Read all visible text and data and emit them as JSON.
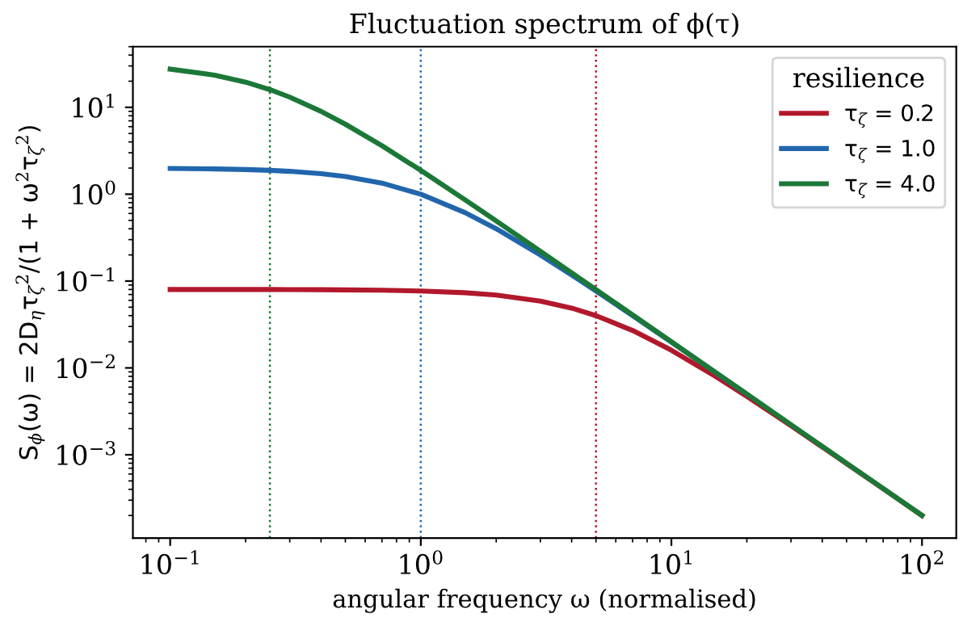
{
  "chart_data": {
    "type": "line",
    "title": "Fluctuation spectrum of ϕ(τ)",
    "xlabel": "angular frequency ω (normalised)",
    "ylabel": "S$_{ϕ}$(ω) = 2D$_{η}$τ$_{ζ}$$^{2}$/(1 + ω$^{2}$τ$_{ζ}$$^{2}$)",
    "legend_title": "resilience",
    "x": [
      0.1,
      0.15,
      0.2,
      0.25,
      0.3,
      0.4,
      0.5,
      0.7,
      1,
      1.5,
      2,
      3,
      4,
      5,
      7,
      10,
      15,
      20,
      30,
      50,
      70,
      100
    ],
    "series": [
      {
        "name": "τ$_{ζ}$ = 0.2",
        "color": "#b2182b",
        "values": [
          0.08,
          0.08,
          0.08,
          0.08,
          0.0797,
          0.0795,
          0.0792,
          0.0785,
          0.0769,
          0.0734,
          0.069,
          0.0588,
          0.0488,
          0.04,
          0.027,
          0.016,
          0.008,
          0.00471,
          0.00216,
          0.000792,
          0.000406,
          0.0002
        ]
      },
      {
        "name": "τ$_{ζ}$ = 1.0",
        "color": "#2166ac",
        "values": [
          1.98,
          1.956,
          1.923,
          1.882,
          1.835,
          1.724,
          1.6,
          1.342,
          1,
          0.615,
          0.4,
          0.2,
          0.1176,
          0.0769,
          0.04,
          0.0198,
          0.00885,
          0.00499,
          null,
          null,
          null,
          null
        ]
      },
      {
        "name": "τ$_{ζ}$ = 4.0",
        "color": "#1b7837",
        "values": [
          27.59,
          23.53,
          19.51,
          16,
          13.11,
          8.99,
          6.4,
          3.62,
          1.882,
          0.865,
          0.492,
          0.2207,
          0.1245,
          0.0798,
          0.0408,
          0.01999,
          0.00889,
          0.005,
          0.00222,
          0.0008,
          0.000408,
          0.0002
        ]
      }
    ],
    "ref_lines": [
      {
        "axis": "x",
        "value": 0.25,
        "color": "#1b7837",
        "line_style": "dotted"
      },
      {
        "axis": "x",
        "value": 1,
        "color": "#2166ac",
        "line_style": "dotted"
      },
      {
        "axis": "x",
        "value": 5,
        "color": "#b2182b",
        "line_style": "dotted"
      }
    ],
    "log": "xy",
    "xlim": [
      0.071,
      137
    ],
    "ylim": [
      0.00011,
      50
    ],
    "xticks": [
      {
        "value": 0.1,
        "label": "10$^{−1}$"
      },
      {
        "value": 1,
        "label": "10$^{0}$"
      },
      {
        "value": 10,
        "label": "10$^{1}$"
      },
      {
        "value": 100,
        "label": "10$^{2}$"
      }
    ],
    "yticks": [
      {
        "value": 0.001,
        "label": "10$^{−3}$"
      },
      {
        "value": 0.01,
        "label": "10$^{−2}$"
      },
      {
        "value": 0.1,
        "label": "10$^{−1}$"
      },
      {
        "value": 1,
        "label": "10$^{0}$"
      },
      {
        "value": 10,
        "label": "10$^{1}$"
      }
    ],
    "grid": false,
    "legend": "top right",
    "line_style": "solid",
    "marker": "none"
  }
}
